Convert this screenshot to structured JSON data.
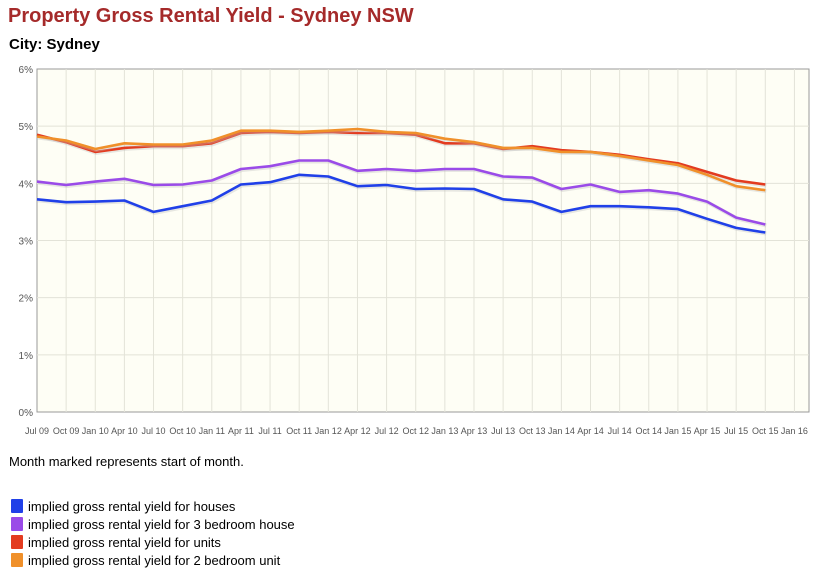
{
  "header": {
    "title": "Property Gross Rental Yield - Sydney NSW",
    "subtitle": "City: Sydney"
  },
  "note": "Month marked represents start of month.",
  "chart_data": {
    "type": "line",
    "title": "Property Gross Rental Yield - Sydney NSW",
    "x_ticks": [
      "Jul 09",
      "Oct 09",
      "Jan 10",
      "Apr 10",
      "Jul 10",
      "Oct 10",
      "Jan 11",
      "Apr 11",
      "Jul 11",
      "Oct 11",
      "Jan 12",
      "Apr 12",
      "Jul 12",
      "Oct 12",
      "Jan 13",
      "Apr 13",
      "Jul 13",
      "Oct 13",
      "Jan 14",
      "Apr 14",
      "Jul 14",
      "Oct 14",
      "Jan 15",
      "Apr 15",
      "Jul 15",
      "Oct 15",
      "Jan 16"
    ],
    "y_ticks": [
      "0%",
      "1%",
      "2%",
      "3%",
      "4%",
      "5%",
      "6%"
    ],
    "ylim": [
      0,
      6
    ],
    "grid": true,
    "legend_position": "bottom",
    "background": "#fefef5",
    "series": [
      {
        "name": "implied gross rental yield for houses",
        "color": "#2040e8",
        "x": [
          "Jul 09",
          "Oct 09",
          "Jan 10",
          "Apr 10",
          "Jul 10",
          "Oct 10",
          "Jan 11",
          "Apr 11",
          "Jul 11",
          "Oct 11",
          "Jan 12",
          "Apr 12",
          "Jul 12",
          "Oct 12",
          "Jan 13",
          "Apr 13",
          "Jul 13",
          "Oct 13",
          "Jan 14",
          "Apr 14",
          "Jul 14",
          "Oct 14",
          "Jan 15",
          "Apr 15",
          "Jul 15",
          "Oct 15"
        ],
        "values": [
          3.72,
          3.67,
          3.68,
          3.7,
          3.5,
          3.6,
          3.7,
          3.98,
          4.02,
          4.15,
          4.12,
          3.95,
          3.97,
          3.9,
          3.91,
          3.9,
          3.72,
          3.68,
          3.5,
          3.6,
          3.6,
          3.58,
          3.55,
          3.38,
          3.22,
          3.14
        ]
      },
      {
        "name": "implied gross rental yield for 3 bedroom house",
        "color": "#9a4be8",
        "x": [
          "Jul 09",
          "Oct 09",
          "Jan 10",
          "Apr 10",
          "Jul 10",
          "Oct 10",
          "Jan 11",
          "Apr 11",
          "Jul 11",
          "Oct 11",
          "Jan 12",
          "Apr 12",
          "Jul 12",
          "Oct 12",
          "Jan 13",
          "Apr 13",
          "Jul 13",
          "Oct 13",
          "Jan 14",
          "Apr 14",
          "Jul 14",
          "Oct 14",
          "Jan 15",
          "Apr 15",
          "Jul 15",
          "Oct 15"
        ],
        "values": [
          4.03,
          3.97,
          4.03,
          4.08,
          3.97,
          3.98,
          4.05,
          4.25,
          4.3,
          4.4,
          4.4,
          4.22,
          4.25,
          4.22,
          4.25,
          4.25,
          4.12,
          4.1,
          3.9,
          3.98,
          3.85,
          3.88,
          3.82,
          3.68,
          3.4,
          3.28
        ]
      },
      {
        "name": "implied gross rental yield for units",
        "color": "#e33b1f",
        "x": [
          "Jul 09",
          "Oct 09",
          "Jan 10",
          "Apr 10",
          "Jul 10",
          "Oct 10",
          "Jan 11",
          "Apr 11",
          "Jul 11",
          "Oct 11",
          "Jan 12",
          "Apr 12",
          "Jul 12",
          "Oct 12",
          "Jan 13",
          "Apr 13",
          "Jul 13",
          "Oct 13",
          "Jan 14",
          "Apr 14",
          "Jul 14",
          "Oct 14",
          "Jan 15",
          "Apr 15",
          "Jul 15",
          "Oct 15"
        ],
        "values": [
          4.85,
          4.72,
          4.55,
          4.62,
          4.65,
          4.65,
          4.7,
          4.88,
          4.9,
          4.88,
          4.9,
          4.88,
          4.88,
          4.85,
          4.7,
          4.7,
          4.6,
          4.65,
          4.58,
          4.55,
          4.5,
          4.42,
          4.35,
          4.2,
          4.05,
          3.98
        ]
      },
      {
        "name": "implied gross rental yield for 2 bedroom unit",
        "color": "#f0902a",
        "x": [
          "Jul 09",
          "Oct 09",
          "Jan 10",
          "Apr 10",
          "Jul 10",
          "Oct 10",
          "Jan 11",
          "Apr 11",
          "Jul 11",
          "Oct 11",
          "Jan 12",
          "Apr 12",
          "Jul 12",
          "Oct 12",
          "Jan 13",
          "Apr 13",
          "Jul 13",
          "Oct 13",
          "Jan 14",
          "Apr 14",
          "Jul 14",
          "Oct 14",
          "Jan 15",
          "Apr 15",
          "Jul 15",
          "Oct 15"
        ],
        "values": [
          4.82,
          4.75,
          4.6,
          4.7,
          4.68,
          4.68,
          4.75,
          4.92,
          4.92,
          4.9,
          4.92,
          4.95,
          4.9,
          4.88,
          4.78,
          4.72,
          4.62,
          4.62,
          4.55,
          4.55,
          4.48,
          4.4,
          4.32,
          4.15,
          3.95,
          3.88
        ]
      }
    ]
  }
}
